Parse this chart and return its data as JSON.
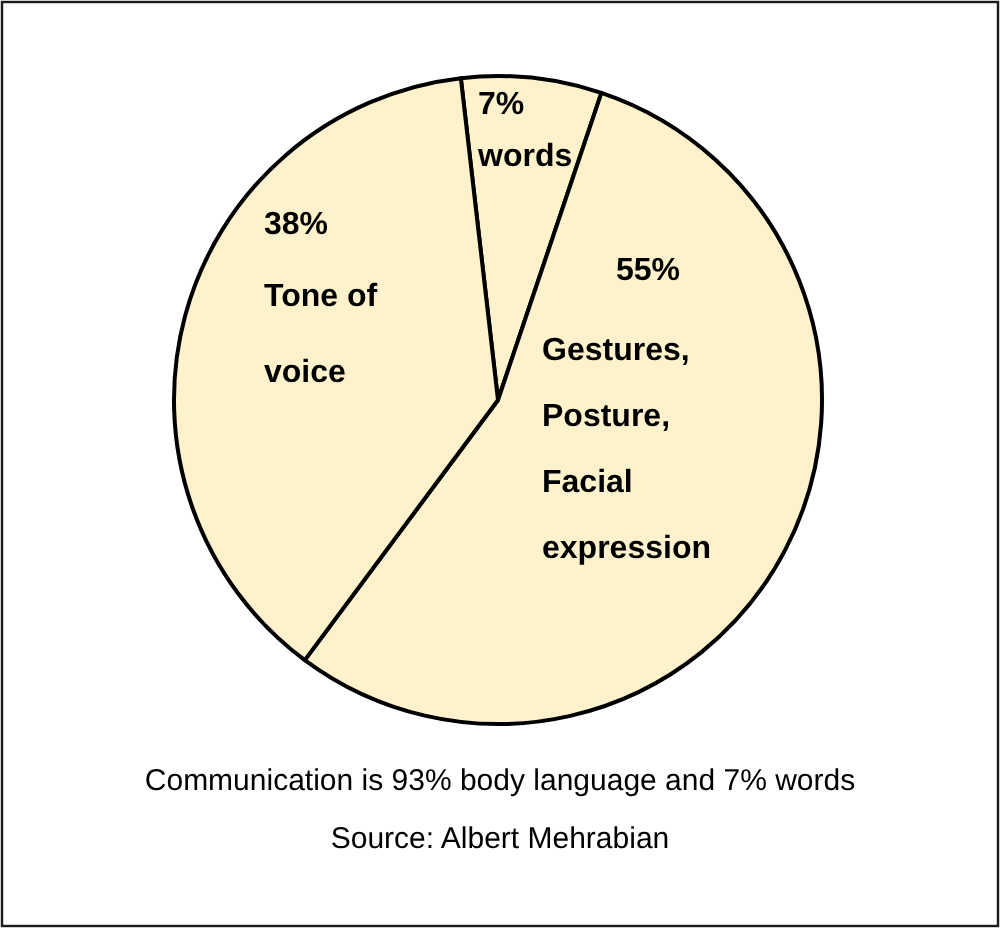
{
  "chart_data": {
    "type": "pie",
    "categories": [
      "words",
      "Gestures, Posture, Facial expression",
      "Tone of voice"
    ],
    "values": [
      7,
      55,
      38
    ],
    "colors": [
      "#fef2cc",
      "#fef2cc",
      "#fef2cc"
    ],
    "value_labels": [
      "7%",
      "55%",
      "38%"
    ],
    "annotations": [
      "Communication is 93% body language and 7% words",
      "Source: Albert Mehrabian"
    ]
  }
}
